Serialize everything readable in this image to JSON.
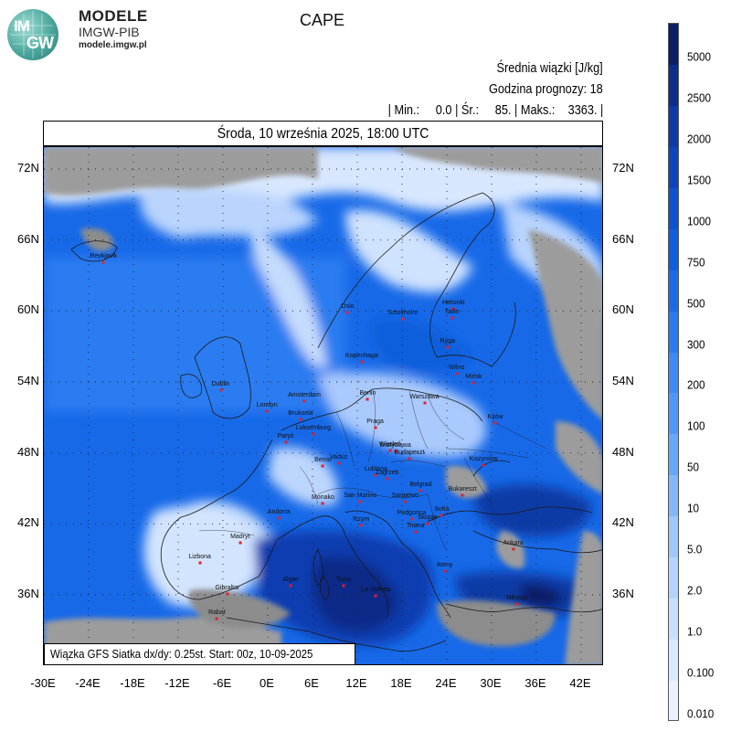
{
  "logo": {
    "letters_top": "IM",
    "letters_bottom": "GW",
    "brand_name": "MODELE",
    "brand_sub": "IMGW-PIB",
    "brand_url": "modele.imgw.pl"
  },
  "map_title": "CAPE",
  "info": {
    "line1": "Średnia wiązki [J/kg]",
    "line2": "Godzina prognozy: 18",
    "line3": "| Min.:     0.0 | Śr.:     85. | Maks.:    3363. |"
  },
  "date_bar": "Środa, 10 września 2025, 18:00 UTC",
  "footer_note": "Wiązka GFS Siatka dx/dy: 0.25st. Start: 00z, 10-09-2025",
  "lat_labels": [
    "72N",
    "66N",
    "60N",
    "54N",
    "48N",
    "42N",
    "36N"
  ],
  "lon_labels": [
    "-30E",
    "-24E",
    "-18E",
    "-12E",
    "-6E",
    "0E",
    "6E",
    "12E",
    "18E",
    "24E",
    "30E",
    "36E",
    "42E"
  ],
  "colorbar": {
    "labels": [
      "5000",
      "2500",
      "2000",
      "1500",
      "1000",
      "750",
      "500",
      "300",
      "200",
      "100",
      "50",
      "10",
      "5.0",
      "2.0",
      "1.0",
      "0.100",
      "0.010"
    ],
    "colors": [
      "#0a1f66",
      "#0c2d8a",
      "#0d3aa6",
      "#0d45bd",
      "#0e52cf",
      "#0f5fdc",
      "#1a6ce6",
      "#2b7bef",
      "#3d8af5",
      "#4f98f8",
      "#67a8fa",
      "#82b8fb",
      "#9cc8fc",
      "#b3d5fd",
      "#c8e0fe",
      "#dbeafe",
      "#eaf2ff"
    ]
  },
  "cities": [
    {
      "name": "Reykjavik",
      "lon": -22,
      "lat": 64.1
    },
    {
      "name": "Oslo",
      "lon": 10.7,
      "lat": 59.9
    },
    {
      "name": "Sztokholm",
      "lon": 18.1,
      "lat": 59.3
    },
    {
      "name": "Helsinki",
      "lon": 24.9,
      "lat": 60.2
    },
    {
      "name": "Tallin",
      "lon": 24.7,
      "lat": 59.4
    },
    {
      "name": "Ryga",
      "lon": 24.1,
      "lat": 56.9
    },
    {
      "name": "Kopenhaga",
      "lon": 12.6,
      "lat": 55.7
    },
    {
      "name": "Wilno",
      "lon": 25.3,
      "lat": 54.7
    },
    {
      "name": "Mińsk",
      "lon": 27.6,
      "lat": 53.9
    },
    {
      "name": "Dublin",
      "lon": -6.3,
      "lat": 53.3
    },
    {
      "name": "Londyn",
      "lon": -0.1,
      "lat": 51.5
    },
    {
      "name": "Amsterdam",
      "lon": 4.9,
      "lat": 52.4
    },
    {
      "name": "Berlin",
      "lon": 13.4,
      "lat": 52.5
    },
    {
      "name": "Warszawa",
      "lon": 21.0,
      "lat": 52.2
    },
    {
      "name": "Bruksela",
      "lon": 4.4,
      "lat": 50.8
    },
    {
      "name": "Luksemburg",
      "lon": 6.1,
      "lat": 49.6
    },
    {
      "name": "Paryż",
      "lon": 2.4,
      "lat": 48.9
    },
    {
      "name": "Praga",
      "lon": 14.4,
      "lat": 50.1
    },
    {
      "name": "Kijów",
      "lon": 30.5,
      "lat": 50.5
    },
    {
      "name": "Wiedeń",
      "lon": 16.4,
      "lat": 48.2
    },
    {
      "name": "Bratysława",
      "lon": 17.1,
      "lat": 48.1
    },
    {
      "name": "Budapeszt",
      "lon": 19.0,
      "lat": 47.5
    },
    {
      "name": "Kiszyniów",
      "lon": 28.9,
      "lat": 47.0
    },
    {
      "name": "Berno",
      "lon": 7.4,
      "lat": 46.9
    },
    {
      "name": "Vaduz",
      "lon": 9.5,
      "lat": 47.1
    },
    {
      "name": "Lublana",
      "lon": 14.5,
      "lat": 46.1
    },
    {
      "name": "Zagrzeb",
      "lon": 16.0,
      "lat": 45.8
    },
    {
      "name": "Belgrad",
      "lon": 20.5,
      "lat": 44.8
    },
    {
      "name": "Bukareszt",
      "lon": 26.1,
      "lat": 44.4
    },
    {
      "name": "Monako",
      "lon": 7.4,
      "lat": 43.7
    },
    {
      "name": "San Marino",
      "lon": 12.4,
      "lat": 43.9
    },
    {
      "name": "Sarajewo",
      "lon": 18.4,
      "lat": 43.9
    },
    {
      "name": "Podgorica",
      "lon": 19.3,
      "lat": 42.4
    },
    {
      "name": "Sofia",
      "lon": 23.3,
      "lat": 42.7
    },
    {
      "name": "Skopje",
      "lon": 21.4,
      "lat": 42.0
    },
    {
      "name": "Tirana",
      "lon": 19.8,
      "lat": 41.3
    },
    {
      "name": "Andorra",
      "lon": 1.5,
      "lat": 42.5
    },
    {
      "name": "Rzym",
      "lon": 12.5,
      "lat": 41.9
    },
    {
      "name": "Madryt",
      "lon": -3.7,
      "lat": 40.4
    },
    {
      "name": "Ateny",
      "lon": 23.7,
      "lat": 38.0
    },
    {
      "name": "Ankara",
      "lon": 32.9,
      "lat": 39.9
    },
    {
      "name": "Lizbona",
      "lon": -9.1,
      "lat": 38.7
    },
    {
      "name": "Algier",
      "lon": 3.1,
      "lat": 36.8
    },
    {
      "name": "Tunis",
      "lon": 10.2,
      "lat": 36.8
    },
    {
      "name": "La Valletta",
      "lon": 14.5,
      "lat": 35.9
    },
    {
      "name": "Gibraltar",
      "lon": -5.4,
      "lat": 36.1
    },
    {
      "name": "Rabat",
      "lon": -6.8,
      "lat": 34.0
    },
    {
      "name": "Nikozja",
      "lon": 33.4,
      "lat": 35.2
    }
  ]
}
